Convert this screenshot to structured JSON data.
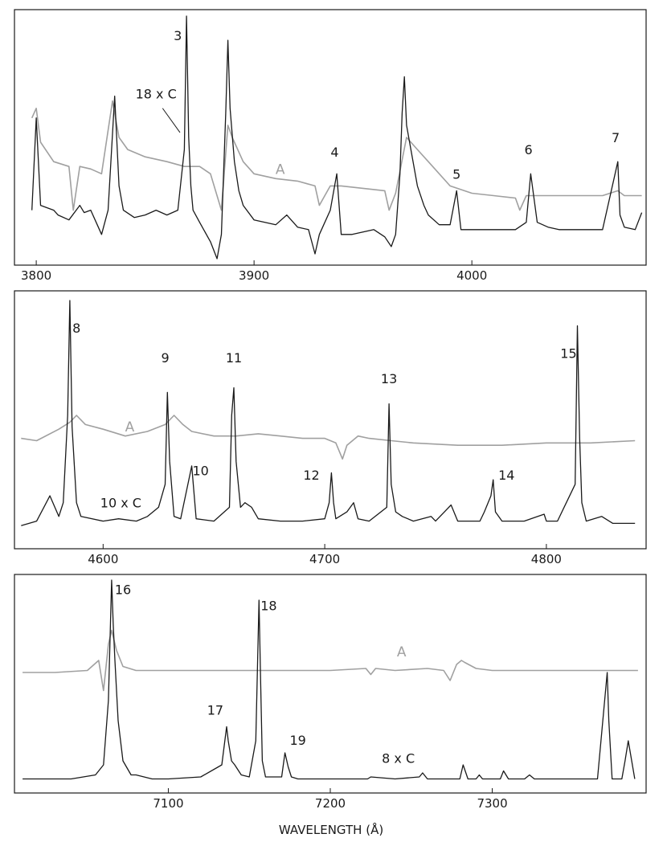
{
  "xlabel": "WAVELENGTH (Å)",
  "chart_data": [
    {
      "type": "line",
      "panel": "top",
      "xlim": [
        3790,
        4080
      ],
      "xticks": [
        3800,
        3900,
        4000
      ],
      "tick_labels": [
        "3800",
        "3900",
        "4000"
      ],
      "series": [
        {
          "name": "C",
          "label": "18 x C",
          "color": "#1a1a1a",
          "baseline": 0.18,
          "x": [
            3798,
            3800,
            3802,
            3808,
            3810,
            3815,
            3820,
            3822,
            3825,
            3828,
            3830,
            3833,
            3836,
            3838,
            3840,
            3845,
            3850,
            3855,
            3860,
            3865,
            3868,
            3869,
            3870,
            3871,
            3872,
            3875,
            3880,
            3883,
            3885,
            3887,
            3888,
            3889,
            3891,
            3893,
            3895,
            3900,
            3905,
            3910,
            3915,
            3920,
            3925,
            3928,
            3930,
            3935,
            3937,
            3938,
            3940,
            3945,
            3950,
            3955,
            3960,
            3963,
            3965,
            3967,
            3968,
            3969,
            3970,
            3972,
            3975,
            3978,
            3980,
            3985,
            3990,
            3993,
            3995,
            4000,
            4010,
            4020,
            4025,
            4027,
            4030,
            4035,
            4040,
            4050,
            4060,
            4067,
            4068,
            4070,
            4075,
            4078
          ],
          "y": [
            0.2,
            0.58,
            0.22,
            0.2,
            0.18,
            0.16,
            0.22,
            0.19,
            0.2,
            0.14,
            0.1,
            0.2,
            0.67,
            0.3,
            0.2,
            0.17,
            0.18,
            0.2,
            0.18,
            0.2,
            0.45,
            1.0,
            0.5,
            0.3,
            0.2,
            0.15,
            0.07,
            0.0,
            0.1,
            0.6,
            0.9,
            0.62,
            0.4,
            0.28,
            0.22,
            0.16,
            0.15,
            0.14,
            0.18,
            0.13,
            0.12,
            0.02,
            0.1,
            0.2,
            0.3,
            0.35,
            0.1,
            0.1,
            0.11,
            0.12,
            0.09,
            0.05,
            0.1,
            0.35,
            0.6,
            0.75,
            0.55,
            0.45,
            0.3,
            0.22,
            0.18,
            0.14,
            0.14,
            0.28,
            0.12,
            0.12,
            0.12,
            0.12,
            0.15,
            0.35,
            0.15,
            0.13,
            0.12,
            0.12,
            0.12,
            0.4,
            0.18,
            0.13,
            0.12,
            0.19
          ]
        },
        {
          "name": "A",
          "label": "A",
          "color": "#a0a0a0",
          "baseline": 0.25,
          "x": [
            3798,
            3800,
            3802,
            3808,
            3815,
            3817,
            3820,
            3825,
            3830,
            3835,
            3838,
            3842,
            3850,
            3860,
            3868,
            3875,
            3880,
            3885,
            3888,
            3890,
            3895,
            3900,
            3910,
            3920,
            3928,
            3930,
            3935,
            3940,
            3950,
            3960,
            3962,
            3965,
            3970,
            3975,
            3980,
            3990,
            4000,
            4010,
            4020,
            4022,
            4025,
            4030,
            4040,
            4050,
            4060,
            4067,
            4070,
            4078
          ],
          "y": [
            0.58,
            0.62,
            0.48,
            0.4,
            0.38,
            0.2,
            0.38,
            0.37,
            0.35,
            0.65,
            0.5,
            0.45,
            0.42,
            0.4,
            0.38,
            0.38,
            0.35,
            0.2,
            0.55,
            0.5,
            0.4,
            0.35,
            0.33,
            0.32,
            0.3,
            0.22,
            0.3,
            0.3,
            0.29,
            0.28,
            0.2,
            0.27,
            0.5,
            0.45,
            0.4,
            0.3,
            0.27,
            0.26,
            0.25,
            0.2,
            0.26,
            0.26,
            0.26,
            0.26,
            0.26,
            0.28,
            0.26,
            0.26
          ]
        }
      ],
      "annotations": [
        {
          "text": "3",
          "x": 3865,
          "y": 0.9
        },
        {
          "text": "4",
          "x": 3937,
          "y": 0.42
        },
        {
          "text": "5",
          "x": 3993,
          "y": 0.33
        },
        {
          "text": "6",
          "x": 4026,
          "y": 0.43
        },
        {
          "text": "7",
          "x": 4066,
          "y": 0.48
        },
        {
          "text": "18 x C",
          "x": 3855,
          "y": 0.66
        },
        {
          "text": "A",
          "x": 3912,
          "y": 0.35
        }
      ]
    },
    {
      "type": "line",
      "panel": "middle",
      "xlim": [
        4560,
        4845
      ],
      "xticks": [
        4600,
        4700,
        4800
      ],
      "tick_labels": [
        "4600",
        "4700",
        "4800"
      ],
      "series": [
        {
          "name": "C",
          "label": "10 x C",
          "color": "#1a1a1a",
          "x": [
            4563,
            4570,
            4576,
            4580,
            4582,
            4584,
            4585,
            4586,
            4588,
            4590,
            4600,
            4607,
            4615,
            4620,
            4625,
            4628,
            4629,
            4630,
            4632,
            4635,
            4640,
            4642,
            4650,
            4657,
            4658,
            4659,
            4660,
            4662,
            4664,
            4667,
            4670,
            4680,
            4690,
            4700,
            4702,
            4703,
            4704,
            4705,
            4710,
            4713,
            4715,
            4720,
            4728,
            4729,
            4730,
            4732,
            4735,
            4740,
            4748,
            4750,
            4757,
            4760,
            4770,
            4772,
            4775,
            4776,
            4777,
            4780,
            4790,
            4799,
            4800,
            4805,
            4813,
            4814,
            4815,
            4816,
            4818,
            4825,
            4830,
            4840
          ],
          "y": [
            0.02,
            0.04,
            0.15,
            0.06,
            0.12,
            0.5,
            1.0,
            0.45,
            0.12,
            0.06,
            0.04,
            0.05,
            0.04,
            0.06,
            0.1,
            0.2,
            0.6,
            0.3,
            0.06,
            0.05,
            0.28,
            0.05,
            0.04,
            0.1,
            0.5,
            0.62,
            0.3,
            0.1,
            0.12,
            0.1,
            0.05,
            0.04,
            0.04,
            0.05,
            0.12,
            0.25,
            0.12,
            0.05,
            0.08,
            0.12,
            0.05,
            0.04,
            0.1,
            0.55,
            0.2,
            0.08,
            0.06,
            0.04,
            0.06,
            0.04,
            0.11,
            0.04,
            0.04,
            0.08,
            0.15,
            0.22,
            0.08,
            0.04,
            0.04,
            0.07,
            0.04,
            0.04,
            0.2,
            0.89,
            0.4,
            0.12,
            0.04,
            0.06,
            0.03,
            0.03
          ]
        },
        {
          "name": "A",
          "label": "A",
          "color": "#a0a0a0",
          "x": [
            4563,
            4570,
            4580,
            4585,
            4588,
            4592,
            4600,
            4610,
            4620,
            4628,
            4632,
            4636,
            4640,
            4650,
            4660,
            4670,
            4680,
            4690,
            4700,
            4705,
            4708,
            4710,
            4715,
            4720,
            4730,
            4740,
            4760,
            4780,
            4800,
            4820,
            4840
          ],
          "y": [
            0.4,
            0.39,
            0.44,
            0.47,
            0.5,
            0.46,
            0.44,
            0.41,
            0.43,
            0.46,
            0.5,
            0.46,
            0.43,
            0.41,
            0.41,
            0.42,
            0.41,
            0.4,
            0.4,
            0.38,
            0.31,
            0.37,
            0.41,
            0.4,
            0.39,
            0.38,
            0.37,
            0.37,
            0.38,
            0.38,
            0.39
          ]
        }
      ],
      "annotations": [
        {
          "text": "8",
          "x": 4588,
          "y": 0.86
        },
        {
          "text": "9",
          "x": 4628,
          "y": 0.73
        },
        {
          "text": "10",
          "x": 4644,
          "y": 0.24
        },
        {
          "text": "11",
          "x": 4659,
          "y": 0.73
        },
        {
          "text": "12",
          "x": 4694,
          "y": 0.22
        },
        {
          "text": "13",
          "x": 4729,
          "y": 0.64
        },
        {
          "text": "14",
          "x": 4782,
          "y": 0.22
        },
        {
          "text": "15",
          "x": 4810,
          "y": 0.75
        },
        {
          "text": "10 x C",
          "x": 4608,
          "y": 0.1
        },
        {
          "text": "A",
          "x": 4612,
          "y": 0.43
        }
      ]
    },
    {
      "type": "line",
      "panel": "bottom",
      "xlim": [
        7005,
        7395
      ],
      "xticks": [
        7100,
        7200,
        7300
      ],
      "tick_labels": [
        "7100",
        "7200",
        "7300"
      ],
      "series": [
        {
          "name": "C",
          "label": "8 x C",
          "color": "#1a1a1a",
          "x": [
            7010,
            7040,
            7055,
            7060,
            7063,
            7065,
            7066,
            7067,
            7069,
            7072,
            7077,
            7080,
            7090,
            7100,
            7120,
            7133,
            7136,
            7137,
            7139,
            7141,
            7145,
            7150,
            7154,
            7156,
            7157,
            7158,
            7160,
            7170,
            7172,
            7174,
            7176,
            7180,
            7200,
            7223,
            7225,
            7240,
            7255,
            7257,
            7260,
            7280,
            7282,
            7285,
            7290,
            7292,
            7294,
            7305,
            7307,
            7310,
            7320,
            7323,
            7326,
            7340,
            7365,
            7371,
            7372,
            7374,
            7380,
            7382,
            7384,
            7388
          ],
          "y": [
            0.01,
            0.01,
            0.03,
            0.08,
            0.4,
            1.0,
            0.78,
            0.6,
            0.3,
            0.1,
            0.03,
            0.03,
            0.01,
            0.01,
            0.02,
            0.08,
            0.27,
            0.2,
            0.1,
            0.08,
            0.03,
            0.02,
            0.2,
            0.9,
            0.5,
            0.1,
            0.02,
            0.02,
            0.14,
            0.07,
            0.02,
            0.01,
            0.01,
            0.01,
            0.02,
            0.01,
            0.02,
            0.04,
            0.01,
            0.01,
            0.08,
            0.01,
            0.01,
            0.03,
            0.01,
            0.01,
            0.05,
            0.01,
            0.01,
            0.03,
            0.01,
            0.01,
            0.01,
            0.54,
            0.3,
            0.01,
            0.01,
            0.1,
            0.2,
            0.01
          ]
        },
        {
          "name": "A",
          "label": "A",
          "color": "#a0a0a0",
          "x": [
            7010,
            7030,
            7050,
            7057,
            7060,
            7063,
            7065,
            7068,
            7072,
            7080,
            7100,
            7150,
            7200,
            7222,
            7225,
            7228,
            7240,
            7260,
            7270,
            7274,
            7278,
            7281,
            7283,
            7290,
            7300,
            7340,
            7390
          ],
          "y": [
            0.54,
            0.54,
            0.55,
            0.6,
            0.45,
            0.68,
            0.75,
            0.65,
            0.57,
            0.55,
            0.55,
            0.55,
            0.55,
            0.56,
            0.53,
            0.56,
            0.55,
            0.56,
            0.55,
            0.5,
            0.58,
            0.6,
            0.59,
            0.56,
            0.55,
            0.55,
            0.55
          ]
        }
      ],
      "annotations": [
        {
          "text": "16",
          "x": 7072,
          "y": 0.93
        },
        {
          "text": "17",
          "x": 7129,
          "y": 0.33
        },
        {
          "text": "18",
          "x": 7162,
          "y": 0.85
        },
        {
          "text": "19",
          "x": 7180,
          "y": 0.18
        },
        {
          "text": "8 x C",
          "x": 7242,
          "y": 0.09
        },
        {
          "text": "A",
          "x": 7244,
          "y": 0.62
        }
      ]
    }
  ]
}
